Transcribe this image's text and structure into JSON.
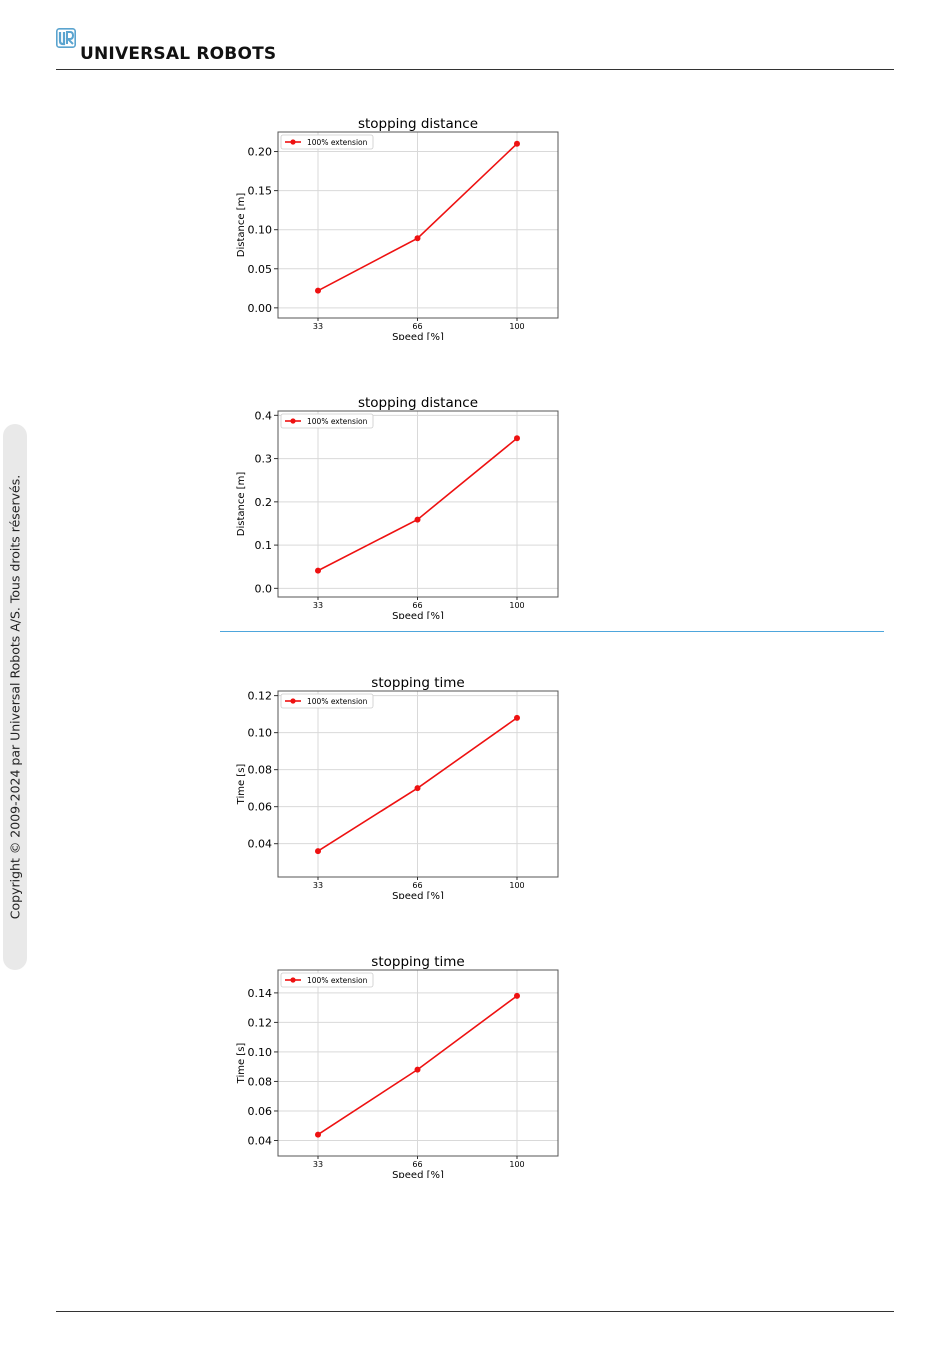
{
  "brand": {
    "name": "UNIVERSAL ROBOTS",
    "color": "#5ba4cf"
  },
  "sidebar": {
    "copyright": "Copyright © 2009-2024 par Universal Robots A/S. Tous droits réservés."
  },
  "colors": {
    "series": "#ee1111",
    "blue_rule": "#4ea6dc",
    "grid": "#d9d9d9"
  },
  "chart_data": [
    {
      "type": "line",
      "title": "stopping distance",
      "xlabel": "Speed [%]",
      "ylabel": "Distance [m]",
      "categories": [
        "33",
        "66",
        "100"
      ],
      "y_ticks": [
        "0.00",
        "0.05",
        "0.10",
        "0.15",
        "0.20"
      ],
      "ylim": [
        -0.013,
        0.225
      ],
      "grid": true,
      "legend_position": "top-left",
      "series": [
        {
          "name": "100% extension",
          "values": [
            0.022,
            0.089,
            0.21
          ]
        }
      ]
    },
    {
      "type": "line",
      "title": "stopping distance",
      "xlabel": "Speed [%]",
      "ylabel": "Distance [m]",
      "categories": [
        "33",
        "66",
        "100"
      ],
      "y_ticks": [
        "0.0",
        "0.1",
        "0.2",
        "0.3",
        "0.4"
      ],
      "ylim": [
        -0.02,
        0.41
      ],
      "grid": true,
      "legend_position": "top-left",
      "series": [
        {
          "name": "100% extension",
          "values": [
            0.041,
            0.159,
            0.347
          ]
        }
      ]
    },
    {
      "type": "line",
      "title": "stopping time",
      "xlabel": "Speed [%]",
      "ylabel": "Time [s]",
      "categories": [
        "33",
        "66",
        "100"
      ],
      "y_ticks": [
        "0.04",
        "0.06",
        "0.08",
        "0.10",
        "0.12"
      ],
      "ylim": [
        0.022,
        0.1225
      ],
      "grid": true,
      "legend_position": "top-left",
      "series": [
        {
          "name": "100% extension",
          "values": [
            0.036,
            0.07,
            0.108
          ]
        }
      ]
    },
    {
      "type": "line",
      "title": "stopping time",
      "xlabel": "Speed [%]",
      "ylabel": "Time [s]",
      "categories": [
        "33",
        "66",
        "100"
      ],
      "y_ticks": [
        "0.04",
        "0.06",
        "0.08",
        "0.10",
        "0.12",
        "0.14"
      ],
      "ylim": [
        0.0295,
        0.1555
      ],
      "grid": true,
      "legend_position": "top-left",
      "series": [
        {
          "name": "100% extension",
          "values": [
            0.044,
            0.088,
            0.138
          ]
        }
      ]
    }
  ]
}
